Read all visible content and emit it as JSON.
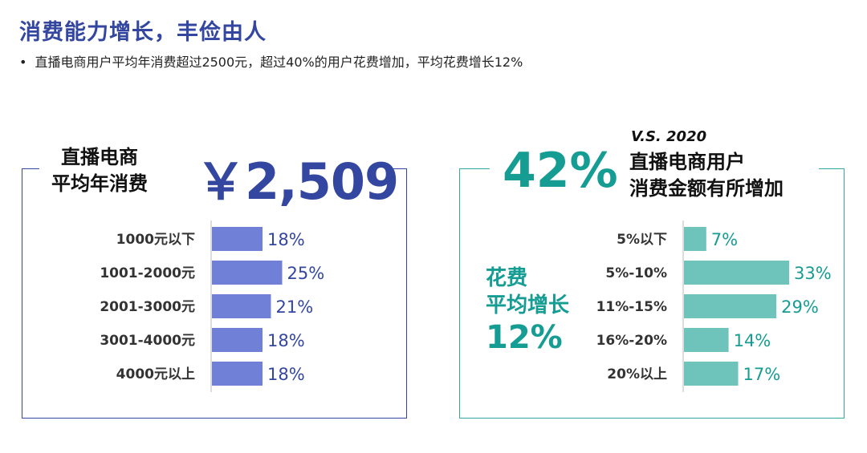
{
  "header": {
    "title": "消费能力增长，丰俭由人",
    "bullet": "直播电商用户平均年消费超过2500元，超过40%的用户花费增加，平均花费增长12%"
  },
  "left_panel": {
    "label_line1": "直播电商",
    "label_line2": "平均年消费",
    "amount": "￥2,509",
    "color": "#6f80d6",
    "text_color": "#3346a0"
  },
  "right_panel": {
    "compare": "V.S. 2020",
    "percent": "42%",
    "label_line1": "直播电商用户",
    "label_line2": "消费金额有所增加",
    "side_line1": "花费",
    "side_line2": "平均增长",
    "side_value": "12%",
    "color": "#6ec3bb",
    "text_color": "#159c93"
  },
  "chart_data": [
    {
      "type": "bar",
      "orientation": "horizontal",
      "categories": [
        "1000元以下",
        "1001-2000元",
        "2001-3000元",
        "3001-4000元",
        "4000元以上"
      ],
      "values": [
        18,
        25,
        21,
        18,
        18
      ],
      "value_labels": [
        "18%",
        "25%",
        "21%",
        "18%",
        "18%"
      ],
      "unit": "%"
    },
    {
      "type": "bar",
      "orientation": "horizontal",
      "categories": [
        "5%以下",
        "5%-10%",
        "11%-15%",
        "16%-20%",
        "20%以上"
      ],
      "values": [
        7,
        33,
        29,
        14,
        17
      ],
      "value_labels": [
        "7%",
        "33%",
        "29%",
        "14%",
        "17%"
      ],
      "unit": "%"
    }
  ]
}
